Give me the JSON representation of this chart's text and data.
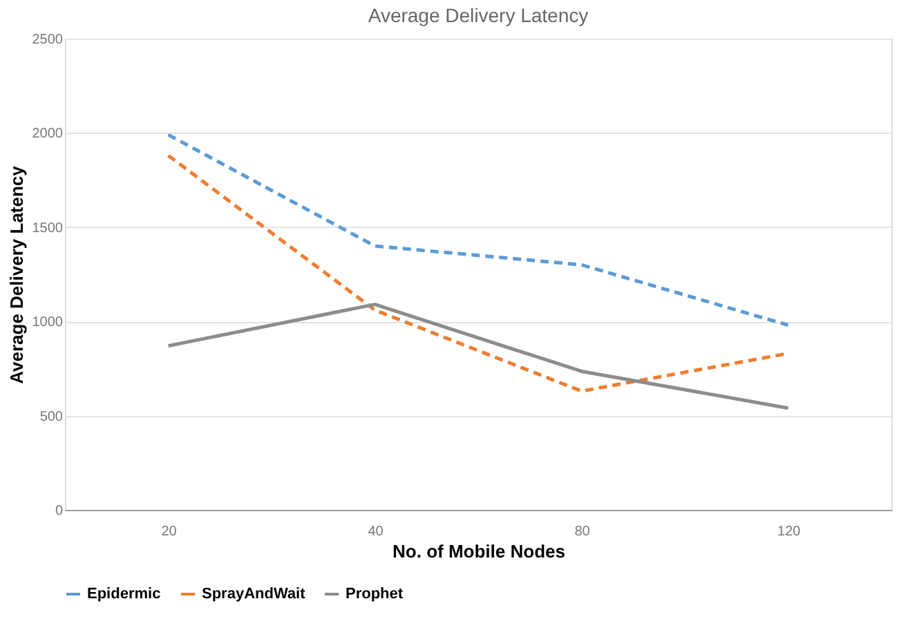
{
  "chart_data": {
    "type": "line",
    "title": "Average Delivery Latency",
    "xlabel": "No. of Mobile Nodes",
    "ylabel": "Average Delivery Latency",
    "categories": [
      "20",
      "40",
      "80",
      "120"
    ],
    "series": [
      {
        "name": "Epidermic",
        "color": "#5b9bd5",
        "line_style": "dashed",
        "values": [
          1990,
          1400,
          1300,
          980
        ]
      },
      {
        "name": "SprayAndWait",
        "color": "#ed7d31",
        "line_style": "dashed",
        "values": [
          1880,
          1060,
          630,
          830
        ]
      },
      {
        "name": "Prophet",
        "color": "#8c8c8c",
        "line_style": "solid",
        "values": [
          870,
          1090,
          735,
          540
        ]
      }
    ],
    "ylim": [
      0,
      2500
    ],
    "yticks": [
      0,
      500,
      1000,
      1500,
      2000,
      2500
    ],
    "grid": "y",
    "legend": "bottom",
    "marker": "none"
  }
}
